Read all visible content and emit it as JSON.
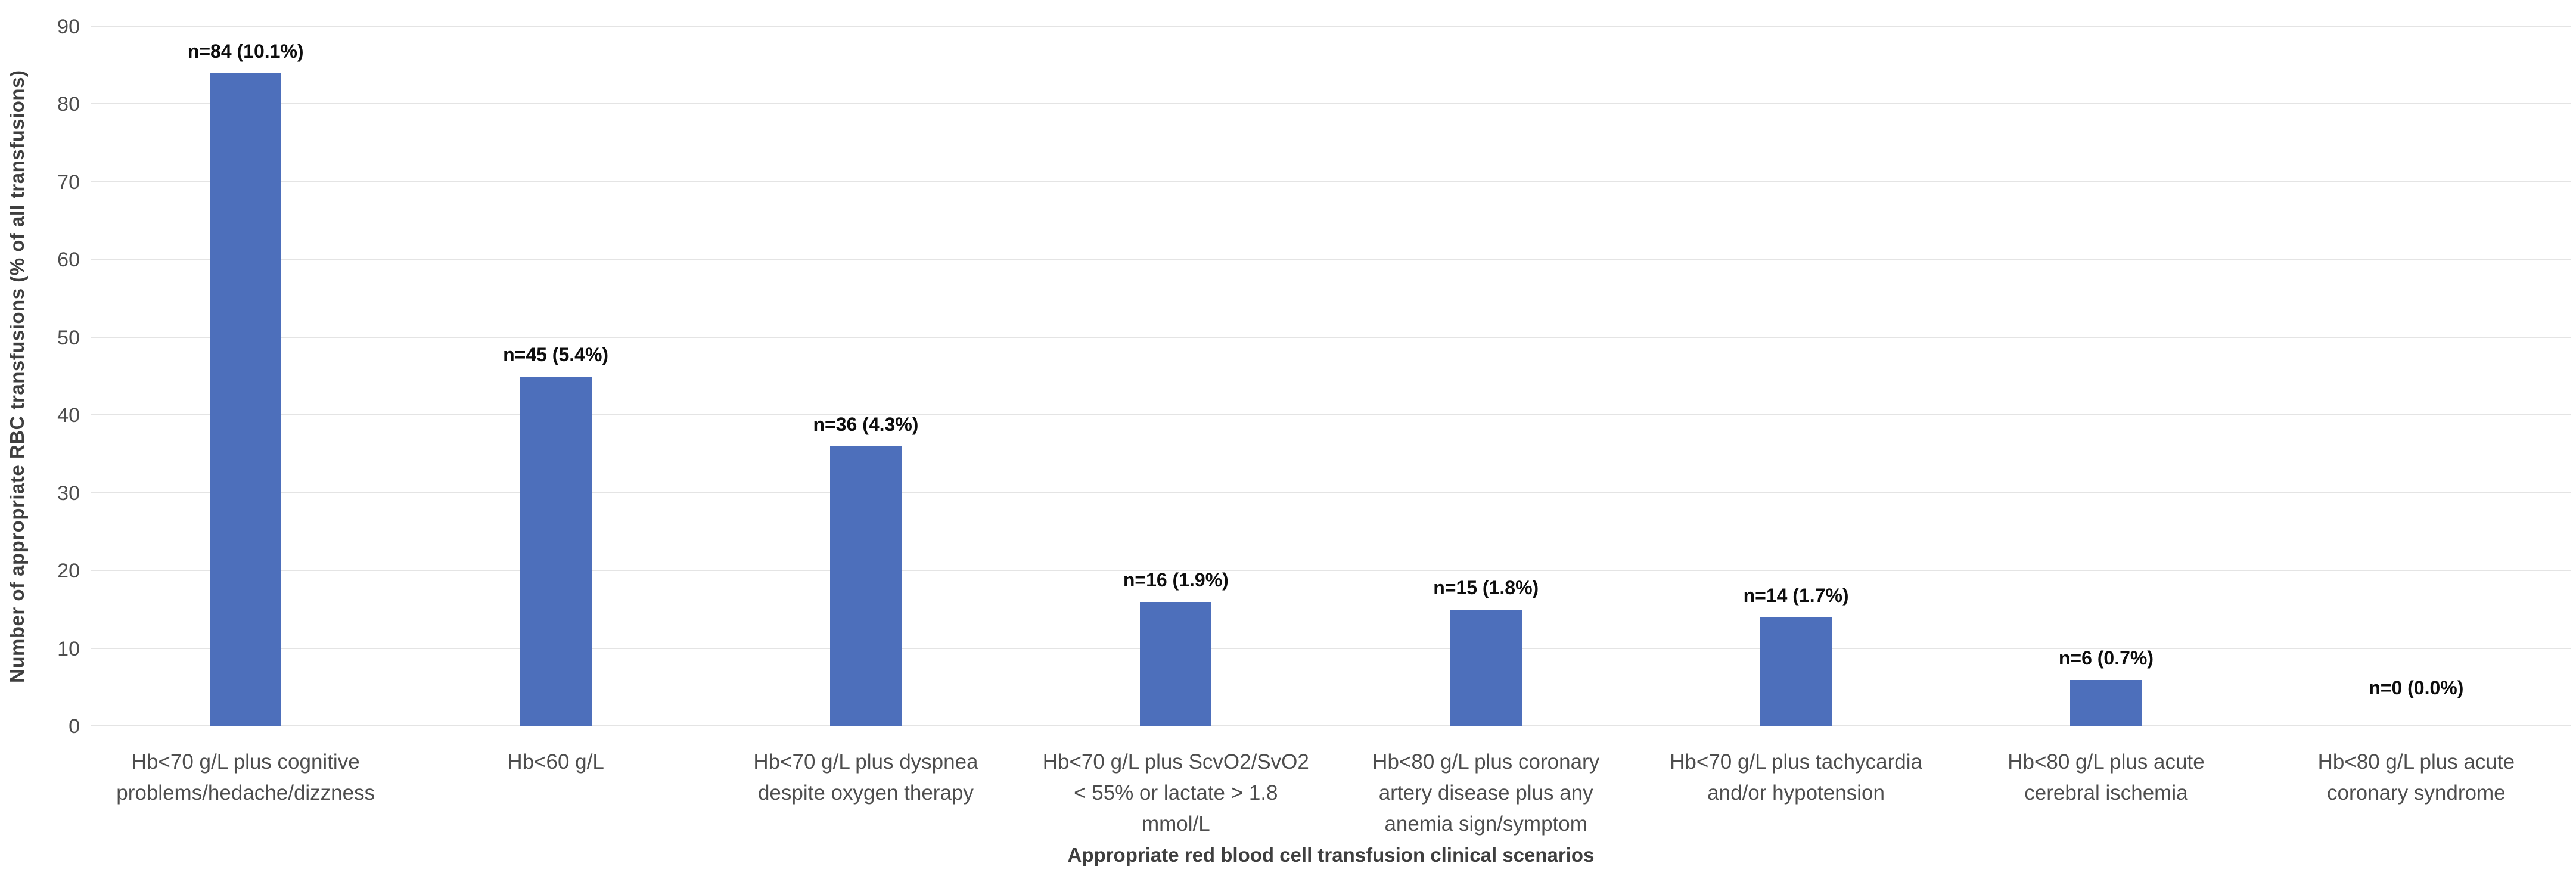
{
  "chart_data": {
    "type": "bar",
    "title": "",
    "xlabel": "Appropriate red blood cell transfusion clinical scenarios",
    "ylabel": "Number of appropriate RBC transfusions (% of all transfusions)",
    "ylim": [
      0,
      90
    ],
    "yticks": [
      0,
      10,
      20,
      30,
      40,
      50,
      60,
      70,
      80,
      90
    ],
    "grid": true,
    "legend": "none",
    "bar_color": "#4d6fbb",
    "categories": [
      "Hb<70 g/L plus cognitive\nproblems/hedache/dizzness",
      "Hb<60 g/L",
      "Hb<70 g/L plus dyspnea\ndespite oxygen therapy",
      "Hb<70 g/L plus ScvO2/SvO2\n< 55% or lactate > 1.8\nmmol/L",
      "Hb<80 g/L plus coronary\nartery disease plus any\nanemia sign/symptom",
      "Hb<70 g/L plus tachycardia\nand/or hypotension",
      "Hb<80 g/L plus acute\ncerebral ischemia",
      "Hb<80 g/L plus acute\ncoronary syndrome"
    ],
    "values": [
      84,
      45,
      36,
      16,
      15,
      14,
      6,
      0
    ],
    "data_labels": [
      "n=84 (10.1%)",
      "n=45 (5.4%)",
      "n=36 (4.3%)",
      "n=16 (1.9%)",
      "n=15 (1.8%)",
      "n=14 (1.7%)",
      "n=6 (0.7%)",
      "n=0 (0.0%)"
    ]
  }
}
